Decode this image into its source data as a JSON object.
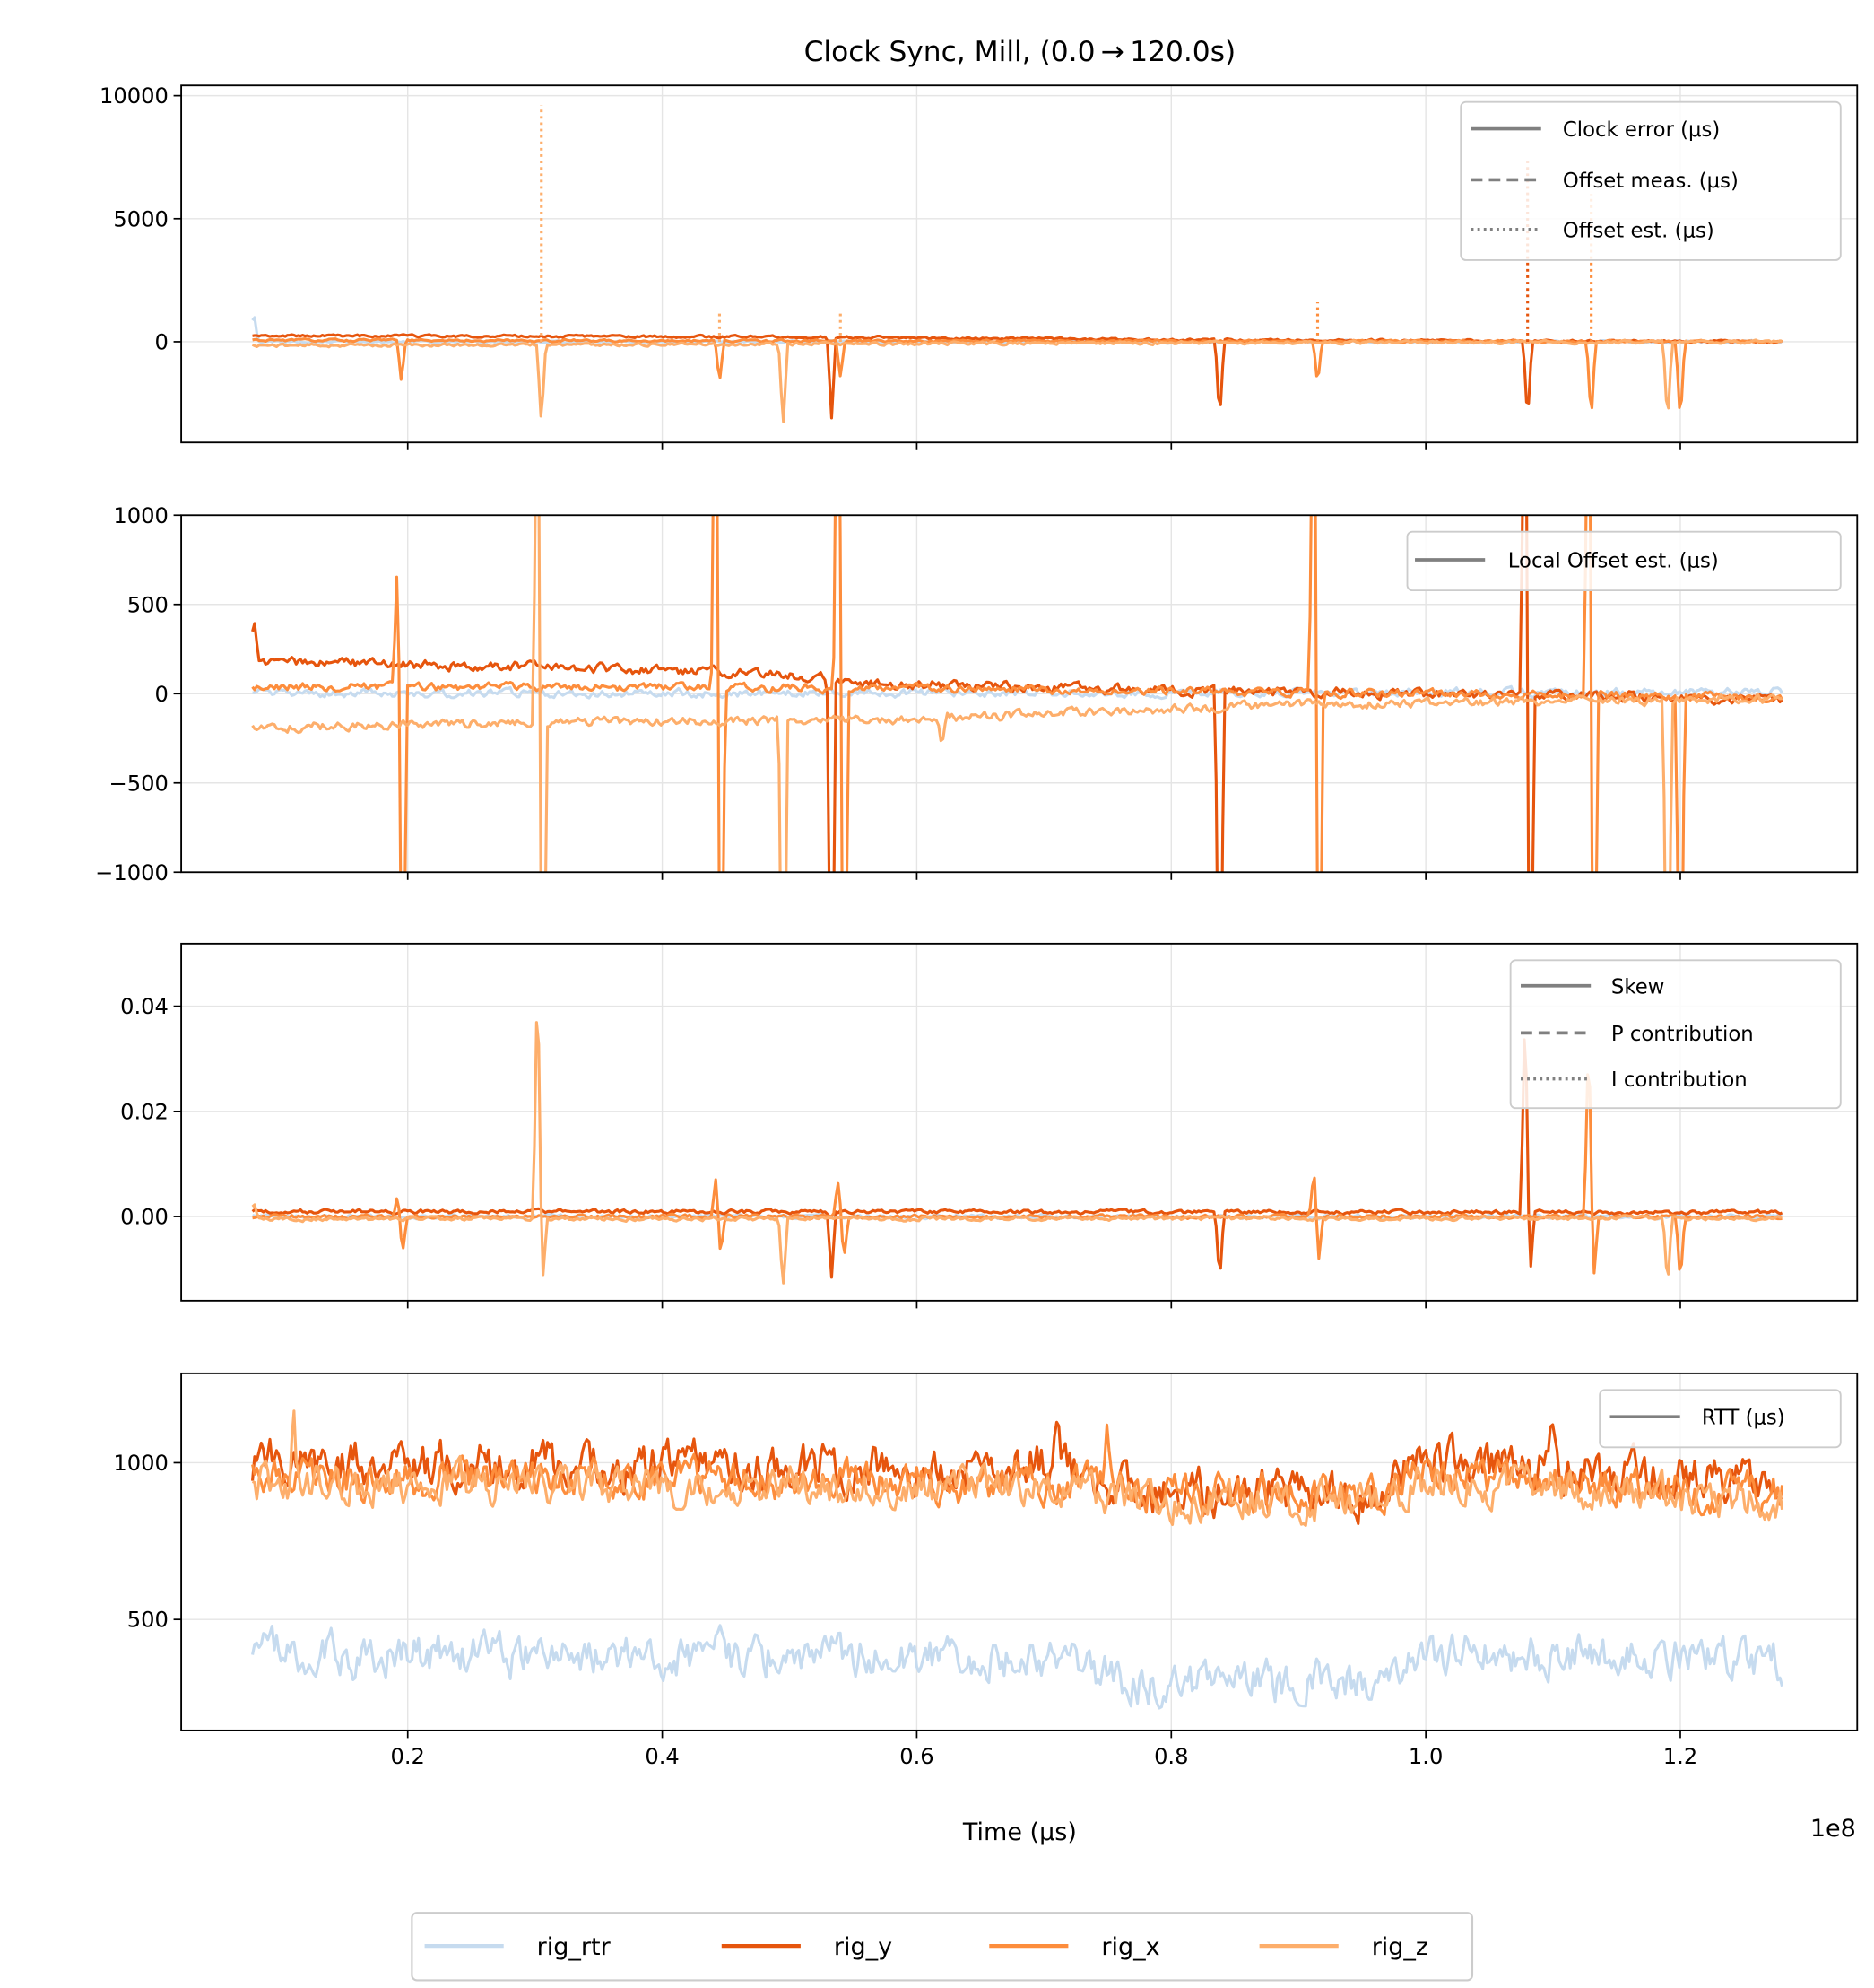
{
  "title": "Clock Sync, Mill, (0.0 → 120.0s)",
  "colors": {
    "rig_rtr": "#c6dbef",
    "rig_y": "#e6550d",
    "rig_x": "#fd8d3c",
    "rig_z": "#fdae6b",
    "legend_line": "#808080",
    "grid": "#e5e5e5"
  },
  "series_names": [
    "rig_rtr",
    "rig_y",
    "rig_x",
    "rig_z"
  ],
  "bottom_legend": {
    "placement": "bottom-center",
    "entries": [
      "rig_rtr",
      "rig_y",
      "rig_x",
      "rig_z"
    ]
  },
  "chart_data": {
    "type": "line",
    "xlabel": "Time (μs)",
    "x_offset_text": "1e8",
    "xlim": [
      0.022,
      1.339
    ],
    "x_range": [
      0.078,
      1.28
    ],
    "xticks": [
      0.2,
      0.4,
      0.6,
      0.8,
      1.0,
      1.2
    ],
    "xtick_labels": [
      "0.2",
      "0.4",
      "0.6",
      "0.8",
      "1.0",
      "1.2"
    ],
    "grid": true,
    "panels": [
      {
        "ylim": [
          -4093,
          10415
        ],
        "yticks": [
          0,
          5000,
          10000
        ],
        "ytick_labels": [
          "0",
          "5000",
          "10000"
        ],
        "legend": {
          "placement": "top-right",
          "entries": [
            {
              "label": "Clock error (μs)",
              "style": "solid"
            },
            {
              "label": "Offset meas. (μs)",
              "style": "dashed"
            },
            {
              "label": "Offset est. (μs)",
              "style": "dotted"
            }
          ]
        },
        "series": [
          {
            "name": "rig_rtr",
            "baseline": [
              [
                0.078,
                0
              ],
              [
                1.28,
                0
              ]
            ],
            "noise": 40,
            "spikes": [
              [
                0.079,
                1200
              ]
            ]
          },
          {
            "name": "rig_y",
            "baseline": [
              [
                0.078,
                250
              ],
              [
                0.5,
                200
              ],
              [
                0.8,
                80
              ],
              [
                1.28,
                0
              ]
            ],
            "noise": 40,
            "spikes": [
              [
                0.533,
                -3300
              ],
              [
                0.838,
                -3300
              ],
              [
                1.08,
                -3300
              ]
            ]
          },
          {
            "name": "rig_x",
            "baseline": [
              [
                0.078,
                60
              ],
              [
                0.6,
                40
              ],
              [
                1.28,
                0
              ]
            ],
            "noise": 40,
            "spikes": [
              [
                0.195,
                -1700
              ],
              [
                0.445,
                -1700
              ],
              [
                0.54,
                -1500
              ],
              [
                0.915,
                -1800
              ],
              [
                1.13,
                -3300
              ],
              [
                1.2,
                -3400
              ]
            ]
          },
          {
            "name": "rig_z",
            "baseline": [
              [
                0.078,
                -150
              ],
              [
                0.5,
                -100
              ],
              [
                0.9,
                -20
              ],
              [
                1.28,
                0
              ]
            ],
            "noise": 50,
            "spikes": [
              [
                0.305,
                -3200
              ],
              [
                0.495,
                -3400
              ],
              [
                1.19,
                -3400
              ]
            ]
          }
        ],
        "est_spikes": [
          {
            "series": "rig_z",
            "x": 0.305,
            "peak": 9600
          },
          {
            "series": "rig_z",
            "x": 0.445,
            "peak": 1300
          },
          {
            "series": "rig_z",
            "x": 0.54,
            "peak": 1200
          },
          {
            "series": "rig_x",
            "x": 0.915,
            "peak": 1600
          },
          {
            "series": "rig_y",
            "x": 1.08,
            "peak": 7500
          },
          {
            "series": "rig_x",
            "x": 1.13,
            "peak": 6000
          }
        ]
      },
      {
        "ylim": [
          -1000,
          1000
        ],
        "yticks": [
          -1000,
          -500,
          0,
          500,
          1000
        ],
        "ytick_labels": [
          "−1000",
          "−500",
          "0",
          "500",
          "1000"
        ],
        "legend": {
          "placement": "top-right",
          "entries": [
            {
              "label": "Local Offset est. (μs)",
              "style": "solid"
            }
          ]
        },
        "series": [
          {
            "name": "rig_rtr",
            "baseline": [
              [
                0.078,
                0
              ],
              [
                1.28,
                10
              ]
            ],
            "noise": 18,
            "spikes": []
          },
          {
            "name": "rig_y",
            "baseline": [
              [
                0.078,
                180
              ],
              [
                0.3,
                150
              ],
              [
                0.5,
                110
              ],
              [
                0.55,
                60
              ],
              [
                0.8,
                20
              ],
              [
                1.28,
                -30
              ]
            ],
            "noise": 22,
            "spikes": [
              [
                0.079,
                250
              ],
              [
                0.533,
                -2500
              ],
              [
                0.838,
                -2500
              ],
              [
                1.078,
                2500
              ],
              [
                1.082,
                -2500
              ]
            ]
          },
          {
            "name": "rig_x",
            "baseline": [
              [
                0.078,
                40
              ],
              [
                0.6,
                30
              ],
              [
                1.28,
                -20
              ]
            ],
            "noise": 18,
            "spikes": [
              [
                0.192,
                750
              ],
              [
                0.196,
                -2500
              ],
              [
                0.442,
                2500
              ],
              [
                0.446,
                -2500
              ],
              [
                0.538,
                2500
              ],
              [
                0.543,
                -2500
              ],
              [
                0.912,
                2500
              ],
              [
                0.916,
                -2500
              ],
              [
                1.128,
                2500
              ],
              [
                1.132,
                -2500
              ],
              [
                1.2,
                -2500
              ]
            ]
          },
          {
            "name": "rig_z",
            "baseline": [
              [
                0.078,
                -190
              ],
              [
                0.3,
                -160
              ],
              [
                0.6,
                -140
              ],
              [
                0.9,
                -60
              ],
              [
                1.28,
                -30
              ]
            ],
            "noise": 20,
            "spikes": [
              [
                0.302,
                2500
              ],
              [
                0.306,
                -2500
              ],
              [
                0.495,
                -2500
              ],
              [
                0.62,
                -150
              ],
              [
                1.19,
                -2500
              ]
            ]
          }
        ]
      },
      {
        "ylim": [
          -0.016,
          0.0519
        ],
        "yticks": [
          0.0,
          0.02,
          0.04
        ],
        "ytick_labels": [
          "0.00",
          "0.02",
          "0.04"
        ],
        "legend": {
          "placement": "top-right",
          "entries": [
            {
              "label": "Skew",
              "style": "solid"
            },
            {
              "label": "P contribution",
              "style": "dashed"
            },
            {
              "label": "I contribution",
              "style": "dotted"
            }
          ]
        },
        "series": [
          {
            "name": "rig_rtr",
            "baseline": [
              [
                0.078,
                0
              ],
              [
                1.28,
                0
              ]
            ],
            "noise": 0.0003,
            "spikes": []
          },
          {
            "name": "rig_y",
            "baseline": [
              [
                0.078,
                0.001
              ],
              [
                1.28,
                0.0008
              ]
            ],
            "noise": 0.0003,
            "spikes": [
              [
                0.533,
                -0.013
              ],
              [
                0.838,
                -0.013
              ],
              [
                1.078,
                0.04
              ],
              [
                1.082,
                -0.012
              ]
            ]
          },
          {
            "name": "rig_x",
            "baseline": [
              [
                0.078,
                0.0
              ],
              [
                1.28,
                0.0
              ]
            ],
            "noise": 0.0003,
            "spikes": [
              [
                0.192,
                0.004
              ],
              [
                0.196,
                -0.007
              ],
              [
                0.442,
                0.007
              ],
              [
                0.446,
                -0.007
              ],
              [
                0.538,
                0.007
              ],
              [
                0.543,
                -0.008
              ],
              [
                0.912,
                0.009
              ],
              [
                0.916,
                -0.008
              ],
              [
                1.128,
                0.035
              ],
              [
                1.132,
                -0.012
              ],
              [
                1.2,
                -0.013
              ]
            ]
          },
          {
            "name": "rig_z",
            "baseline": [
              [
                0.078,
                -0.0005
              ],
              [
                1.28,
                -0.0003
              ]
            ],
            "noise": 0.0003,
            "spikes": [
              [
                0.079,
                0.003
              ],
              [
                0.302,
                0.048
              ],
              [
                0.306,
                -0.012
              ],
              [
                0.495,
                -0.013
              ],
              [
                1.19,
                -0.013
              ]
            ]
          }
        ]
      },
      {
        "ylim": [
          146,
          1285
        ],
        "yticks": [
          500,
          1000
        ],
        "ytick_labels": [
          "500",
          "1000"
        ],
        "legend": {
          "placement": "top-right",
          "entries": [
            {
              "label": "RTT (μs)",
              "style": "solid"
            }
          ]
        },
        "series": [
          {
            "name": "rig_rtr",
            "baseline": [
              [
                0.078,
                390
              ],
              [
                0.72,
                380
              ],
              [
                0.76,
                300
              ],
              [
                0.96,
                300
              ],
              [
                0.99,
                400
              ],
              [
                1.28,
                370
              ]
            ],
            "noise": 55,
            "spikes": []
          },
          {
            "name": "rig_y",
            "baseline": [
              [
                0.078,
                1000
              ],
              [
                0.72,
                990
              ],
              [
                0.76,
                910
              ],
              [
                0.96,
                900
              ],
              [
                0.99,
                1000
              ],
              [
                1.28,
                930
              ]
            ],
            "noise": 60,
            "spikes": [
              [
                0.71,
                180
              ],
              [
                1.1,
                150
              ]
            ]
          },
          {
            "name": "rig_x",
            "baseline": [
              [
                0.078,
                950
              ],
              [
                0.72,
                940
              ],
              [
                0.76,
                900
              ],
              [
                0.96,
                890
              ],
              [
                0.99,
                960
              ],
              [
                1.28,
                900
              ]
            ],
            "noise": 50,
            "spikes": [
              [
                0.75,
                200
              ]
            ]
          },
          {
            "name": "rig_z",
            "baseline": [
              [
                0.078,
                930
              ],
              [
                0.72,
                920
              ],
              [
                0.76,
                890
              ],
              [
                0.96,
                880
              ],
              [
                0.99,
                940
              ],
              [
                1.28,
                880
              ]
            ],
            "noise": 50,
            "spikes": [
              [
                0.11,
                250
              ]
            ]
          }
        ]
      }
    ]
  }
}
